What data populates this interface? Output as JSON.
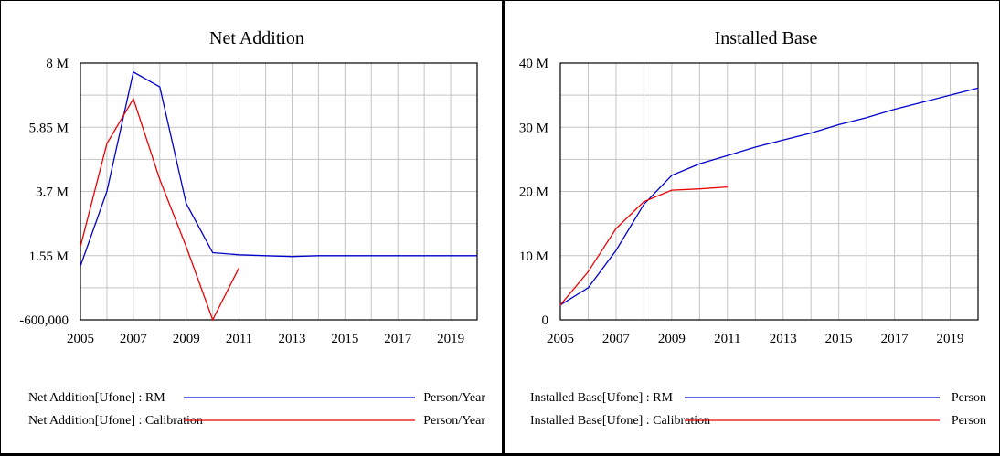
{
  "chart_data": [
    {
      "type": "line",
      "title": "Net Addition",
      "xlabel": "",
      "ylabel": "",
      "xlim": [
        2005,
        2020
      ],
      "ylim": [
        -600000,
        8000000
      ],
      "x_ticks": [
        2005,
        2007,
        2009,
        2011,
        2013,
        2015,
        2017,
        2019
      ],
      "x_tick_labels": [
        "2005",
        "2007",
        "2009",
        "2011",
        "2013",
        "2015",
        "2017",
        "2019"
      ],
      "y_ticks": [
        -600000,
        1550000,
        3700000,
        5850000,
        8000000
      ],
      "y_tick_labels": [
        "-600,000",
        "1.55 M",
        "3.7 M",
        "5.85 M",
        "8 M"
      ],
      "grid": true,
      "legend_position": "bottom",
      "series": [
        {
          "name": "Net Addition[Ufone] : RM",
          "unit": "Person/Year",
          "color": "#0000cc",
          "x": [
            2005,
            2006,
            2007,
            2008,
            2009,
            2010,
            2011,
            2012,
            2013,
            2014,
            2015,
            2016,
            2017,
            2018,
            2019,
            2020
          ],
          "y": [
            1200000,
            3700000,
            7700000,
            7200000,
            3300000,
            1650000,
            1580000,
            1550000,
            1520000,
            1550000,
            1550000,
            1550000,
            1550000,
            1550000,
            1550000,
            1550000
          ]
        },
        {
          "name": "Net Addition[Ufone] : Calibration",
          "unit": "Person/Year",
          "color": "#ee0000",
          "x": [
            2005,
            2006,
            2007,
            2008,
            2009,
            2010,
            2011
          ],
          "y": [
            1850000,
            5300000,
            6800000,
            4100000,
            1850000,
            -600000,
            1150000
          ]
        }
      ]
    },
    {
      "type": "line",
      "title": "Installed Base",
      "xlabel": "",
      "ylabel": "",
      "xlim": [
        2005,
        2020
      ],
      "ylim": [
        0,
        40000000
      ],
      "x_ticks": [
        2005,
        2007,
        2009,
        2011,
        2013,
        2015,
        2017,
        2019
      ],
      "x_tick_labels": [
        "2005",
        "2007",
        "2009",
        "2011",
        "2013",
        "2015",
        "2017",
        "2019"
      ],
      "y_ticks": [
        0,
        10000000,
        20000000,
        30000000,
        40000000
      ],
      "y_tick_labels": [
        "0",
        "10 M",
        "20 M",
        "30 M",
        "40 M"
      ],
      "grid": true,
      "legend_position": "bottom",
      "series": [
        {
          "name": "Installed Base[Ufone] : RM",
          "unit": "Person",
          "color": "#0000cc",
          "x": [
            2005,
            2006,
            2007,
            2008,
            2009,
            2010,
            2011,
            2012,
            2013,
            2014,
            2015,
            2016,
            2017,
            2018,
            2019,
            2020
          ],
          "y": [
            2300000,
            5000000,
            10800000,
            18000000,
            22500000,
            24300000,
            25600000,
            26900000,
            28000000,
            29100000,
            30400000,
            31500000,
            32800000,
            33900000,
            35000000,
            36100000
          ]
        },
        {
          "name": "Installed Base[Ufone] : Calibration",
          "unit": "Person",
          "color": "#ee0000",
          "x": [
            2005,
            2006,
            2007,
            2008,
            2009,
            2010,
            2011
          ],
          "y": [
            2300000,
            7500000,
            14200000,
            18400000,
            20200000,
            20400000,
            20700000
          ]
        }
      ]
    }
  ]
}
